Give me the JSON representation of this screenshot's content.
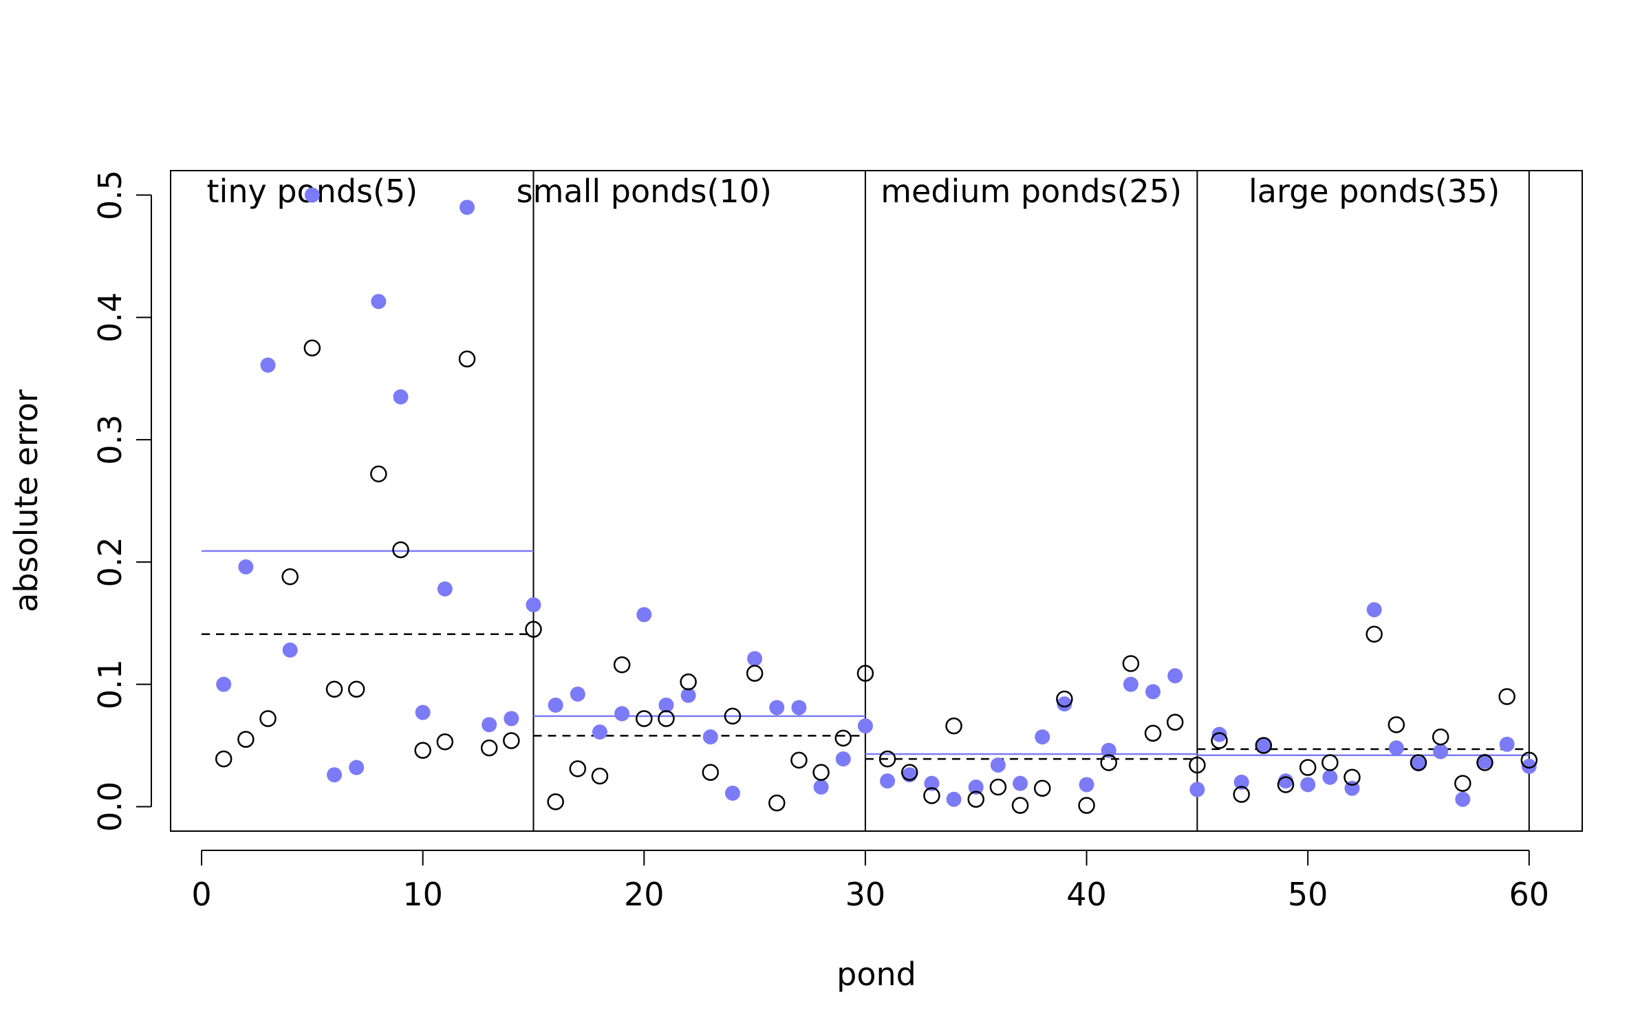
{
  "chart_data": {
    "type": "scatter",
    "title": "",
    "xlabel": "pond",
    "ylabel": "absolute error",
    "xlim": [
      -1.4,
      62.4
    ],
    "ylim": [
      -0.02,
      0.52
    ],
    "xticks": [
      0,
      10,
      20,
      30,
      40,
      50,
      60
    ],
    "xtick_labels": [
      "0",
      "10",
      "20",
      "30",
      "40",
      "50",
      "60"
    ],
    "yticks": [
      0.0,
      0.1,
      0.2,
      0.3,
      0.4,
      0.5
    ],
    "ytick_labels": [
      "0.0",
      "0.1",
      "0.2",
      "0.3",
      "0.4",
      "0.5"
    ],
    "grid": false,
    "colors": {
      "filled": "#7b7bf7",
      "open": "#000000"
    },
    "group_dividers": [
      15,
      30,
      45,
      60
    ],
    "groups": [
      {
        "label": "tiny ponds(5)",
        "x_from": 0,
        "x_to": 15,
        "label_x": 5,
        "mean_filled": 0.209,
        "mean_open": 0.141
      },
      {
        "label": "small ponds(10)",
        "x_from": 15,
        "x_to": 30,
        "label_x": 20,
        "mean_filled": 0.074,
        "mean_open": 0.058
      },
      {
        "label": "medium ponds(25)",
        "x_from": 30,
        "x_to": 45,
        "label_x": 37.5,
        "mean_filled": 0.043,
        "mean_open": 0.039
      },
      {
        "label": "large ponds(35)",
        "x_from": 45,
        "x_to": 60,
        "label_x": 53,
        "mean_filled": 0.042,
        "mean_open": 0.047
      }
    ],
    "series": [
      {
        "style": "filled",
        "x": [
          1,
          2,
          3,
          4,
          5,
          6,
          7,
          8,
          9,
          10,
          11,
          12,
          13,
          14,
          15,
          16,
          17,
          18,
          19,
          20,
          21,
          22,
          23,
          24,
          25,
          26,
          27,
          28,
          29,
          30,
          31,
          32,
          33,
          34,
          35,
          36,
          37,
          38,
          39,
          40,
          41,
          42,
          43,
          44,
          45,
          46,
          47,
          48,
          49,
          50,
          51,
          52,
          53,
          54,
          55,
          56,
          57,
          58,
          59,
          60
        ],
        "y": [
          0.1,
          0.196,
          0.361,
          0.128,
          0.5,
          0.026,
          0.032,
          0.413,
          0.335,
          0.077,
          0.178,
          0.49,
          0.067,
          0.072,
          0.165,
          0.083,
          0.092,
          0.061,
          0.076,
          0.157,
          0.083,
          0.091,
          0.057,
          0.011,
          0.121,
          0.081,
          0.081,
          0.016,
          0.039,
          0.066,
          0.021,
          0.026,
          0.019,
          0.006,
          0.016,
          0.034,
          0.019,
          0.057,
          0.084,
          0.018,
          0.046,
          0.1,
          0.094,
          0.107,
          0.014,
          0.059,
          0.02,
          0.05,
          0.021,
          0.018,
          0.024,
          0.015,
          0.161,
          0.048,
          0.035,
          0.045,
          0.006,
          0.037,
          0.051,
          0.033
        ]
      },
      {
        "style": "open",
        "x": [
          1,
          2,
          3,
          4,
          5,
          6,
          7,
          8,
          9,
          10,
          11,
          12,
          13,
          14,
          15,
          16,
          17,
          18,
          19,
          20,
          21,
          22,
          23,
          24,
          25,
          26,
          27,
          28,
          29,
          30,
          31,
          32,
          33,
          34,
          35,
          36,
          37,
          38,
          39,
          40,
          41,
          42,
          43,
          44,
          45,
          46,
          47,
          48,
          49,
          50,
          51,
          52,
          53,
          54,
          55,
          56,
          57,
          58,
          59,
          60
        ],
        "y": [
          0.039,
          0.055,
          0.072,
          0.188,
          0.375,
          0.096,
          0.096,
          0.272,
          0.21,
          0.046,
          0.053,
          0.366,
          0.048,
          0.054,
          0.145,
          0.004,
          0.031,
          0.025,
          0.116,
          0.072,
          0.072,
          0.102,
          0.028,
          0.074,
          0.109,
          0.003,
          0.038,
          0.028,
          0.056,
          0.109,
          0.039,
          0.028,
          0.009,
          0.066,
          0.006,
          0.016,
          0.001,
          0.015,
          0.088,
          0.001,
          0.036,
          0.117,
          0.06,
          0.069,
          0.034,
          0.054,
          0.01,
          0.05,
          0.018,
          0.032,
          0.036,
          0.024,
          0.141,
          0.067,
          0.036,
          0.057,
          0.019,
          0.036,
          0.09,
          0.038
        ]
      }
    ]
  }
}
